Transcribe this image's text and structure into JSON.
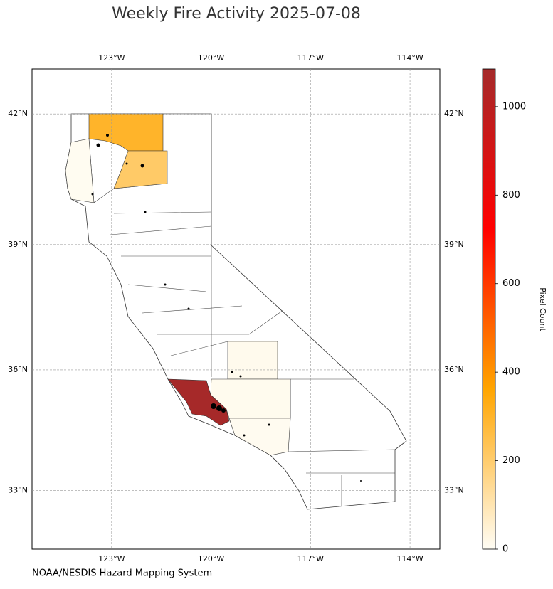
{
  "chart_data": {
    "type": "choropleth",
    "title": "Weekly Fire Activity 2025-07-08",
    "source": "NOAA/NESDIS Hazard Mapping System",
    "colorbar_label": "Pixel Count",
    "xlim": [
      -125.4,
      -113.1
    ],
    "ylim": [
      31.5,
      43.0
    ],
    "xticks": [
      {
        "value": -123,
        "label": "123°W"
      },
      {
        "value": -120,
        "label": "120°W"
      },
      {
        "value": -117,
        "label": "117°W"
      },
      {
        "value": -114,
        "label": "114°W"
      }
    ],
    "yticks": [
      {
        "value": 42,
        "label": "42°N"
      },
      {
        "value": 39,
        "label": "39°N"
      },
      {
        "value": 36,
        "label": "36°N"
      },
      {
        "value": 33,
        "label": "33°N"
      }
    ],
    "grid": true,
    "clim": [
      0,
      1085
    ],
    "cticks": [
      0,
      200,
      400,
      600,
      800,
      1000
    ],
    "colormap": [
      "#fffdf5",
      "#ffa500",
      "#ff0000",
      "#a52a2a"
    ],
    "values": [
      1080,
      300,
      210,
      12,
      10,
      8,
      6
    ]
  }
}
